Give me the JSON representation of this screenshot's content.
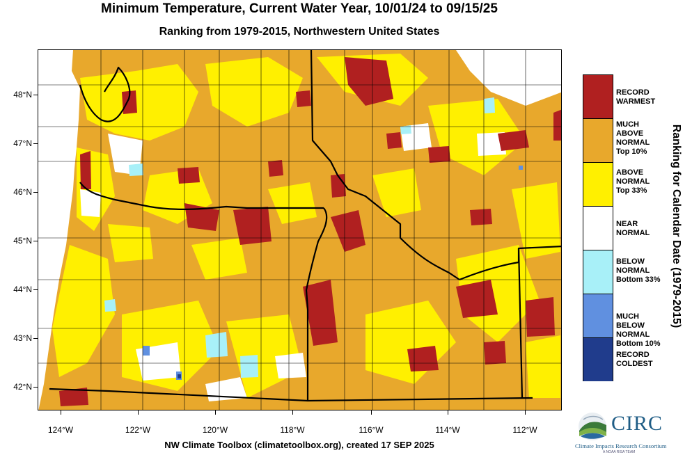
{
  "title": "Minimum Temperature, Current Water Year, 10/01/24 to 09/15/25",
  "subtitle": "Ranking from 1979-2015, Northwestern United States",
  "footer": "NW Climate Toolbox (climatetoolbox.org), created 17 SEP 2025",
  "legend_title": "Ranking for Calendar Date (1979-2015)",
  "legend": [
    {
      "label": "RECORD\nWARMEST",
      "color": "#b02020"
    },
    {
      "label": "MUCH\nABOVE\nNORMAL\nTop 10%",
      "color": "#e8a82c"
    },
    {
      "label": "ABOVE\nNORMAL\nTop 33%",
      "color": "#fff000"
    },
    {
      "label": "NEAR\nNORMAL",
      "color": "#ffffff"
    },
    {
      "label": "BELOW\nNORMAL\nBottom 33%",
      "color": "#a8f0f8"
    },
    {
      "label": "MUCH\nBELOW\nNORMAL\nBottom 10%",
      "color": "#6090e0"
    },
    {
      "label": "RECORD\nCOLDEST",
      "color": "#203c8c"
    }
  ],
  "lat_ticks": [
    "48°N",
    "47°N",
    "46°N",
    "45°N",
    "44°N",
    "43°N",
    "42°N"
  ],
  "lon_ticks": [
    "124°W",
    "122°W",
    "120°W",
    "118°W",
    "116°W",
    "114°W",
    "112°W"
  ],
  "logo": {
    "name": "CIRC",
    "subtitle": "Climate Impacts Research Consortium",
    "team": "A NOAA RISA TEAM"
  }
}
